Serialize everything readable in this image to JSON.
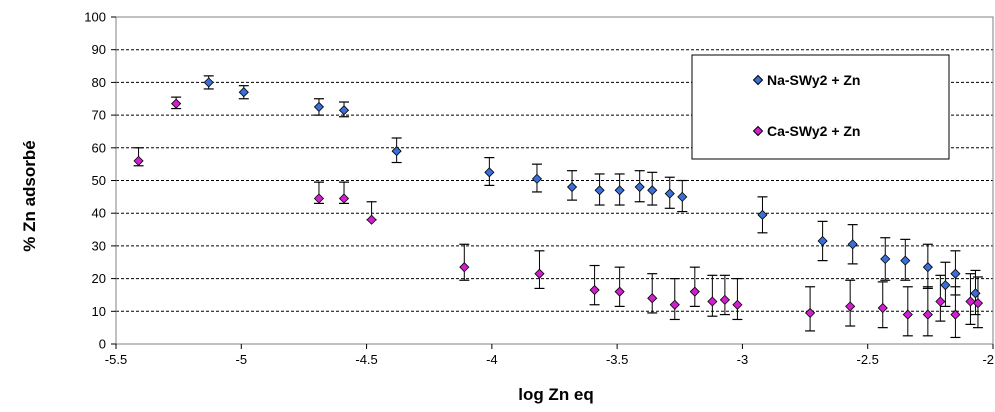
{
  "chart_data": {
    "type": "scatter",
    "title": "",
    "xlabel": "log Zn eq",
    "ylabel": "% Zn adsorbé",
    "xlim": [
      -5.5,
      -2
    ],
    "ylim": [
      0,
      100
    ],
    "x_ticks": [
      -5.5,
      -5,
      -4.5,
      -4,
      -3.5,
      -3,
      -2.5,
      -2
    ],
    "y_ticks": [
      0,
      10,
      20,
      30,
      40,
      50,
      60,
      70,
      80,
      90,
      100
    ],
    "x_tick_labels": [
      "-5.5",
      "-5",
      "-4.5",
      "-4",
      "-3.5",
      "-3",
      "-2.5",
      "-2"
    ],
    "y_tick_labels": [
      "0",
      "10",
      "20",
      "30",
      "40",
      "50",
      "60",
      "70",
      "80",
      "90",
      "100"
    ],
    "grid": "horizontal dashed",
    "legend_position": "top-right",
    "colors": {
      "na": "#3a6fd8",
      "ca": "#d11fcf"
    },
    "series": [
      {
        "name": "Na-SWy2 + Zn",
        "marker": "diamond",
        "points": [
          {
            "x": -5.13,
            "y": 80,
            "lo": 78,
            "hi": 82
          },
          {
            "x": -4.99,
            "y": 77,
            "lo": 75,
            "hi": 79
          },
          {
            "x": -4.69,
            "y": 72.5,
            "lo": 70,
            "hi": 75
          },
          {
            "x": -4.59,
            "y": 71.5,
            "lo": 69.5,
            "hi": 74
          },
          {
            "x": -4.38,
            "y": 59,
            "lo": 55.5,
            "hi": 63
          },
          {
            "x": -4.01,
            "y": 52.5,
            "lo": 48.5,
            "hi": 57
          },
          {
            "x": -3.82,
            "y": 50.5,
            "lo": 46.5,
            "hi": 55
          },
          {
            "x": -3.68,
            "y": 48,
            "lo": 44,
            "hi": 53
          },
          {
            "x": -3.57,
            "y": 47,
            "lo": 42.5,
            "hi": 52
          },
          {
            "x": -3.49,
            "y": 47,
            "lo": 42.5,
            "hi": 52
          },
          {
            "x": -3.41,
            "y": 48,
            "lo": 43.5,
            "hi": 53
          },
          {
            "x": -3.36,
            "y": 47,
            "lo": 42.5,
            "hi": 52.5
          },
          {
            "x": -3.29,
            "y": 46,
            "lo": 41.5,
            "hi": 51
          },
          {
            "x": -3.24,
            "y": 45,
            "lo": 40.5,
            "hi": 50
          },
          {
            "x": -2.92,
            "y": 39.5,
            "lo": 34,
            "hi": 45
          },
          {
            "x": -2.68,
            "y": 31.5,
            "lo": 25.5,
            "hi": 37.5
          },
          {
            "x": -2.56,
            "y": 30.5,
            "lo": 24.5,
            "hi": 36.5
          },
          {
            "x": -2.43,
            "y": 26,
            "lo": 19.5,
            "hi": 32.5
          },
          {
            "x": -2.35,
            "y": 25.5,
            "lo": 19.5,
            "hi": 32
          },
          {
            "x": -2.26,
            "y": 23.5,
            "lo": 17,
            "hi": 30.5
          },
          {
            "x": -2.15,
            "y": 21.5,
            "lo": 15,
            "hi": 28.5
          },
          {
            "x": -2.19,
            "y": 18,
            "lo": 11.5,
            "hi": 25
          },
          {
            "x": -2.07,
            "y": 15.5,
            "lo": 9,
            "hi": 22.5
          }
        ]
      },
      {
        "name": "Ca-SWy2 + Zn",
        "marker": "diamond",
        "points": [
          {
            "x": -5.41,
            "y": 56,
            "lo": 54.5,
            "hi": 60
          },
          {
            "x": -5.26,
            "y": 73.5,
            "lo": 72,
            "hi": 75.5
          },
          {
            "x": -4.69,
            "y": 44.5,
            "lo": 43,
            "hi": 49.5
          },
          {
            "x": -4.59,
            "y": 44.5,
            "lo": 43,
            "hi": 49.5
          },
          {
            "x": -4.48,
            "y": 38,
            "lo": 38,
            "hi": 43.5
          },
          {
            "x": -4.11,
            "y": 23.5,
            "lo": 19.5,
            "hi": 30.5
          },
          {
            "x": -3.81,
            "y": 21.5,
            "lo": 17,
            "hi": 28.5
          },
          {
            "x": -3.59,
            "y": 16.5,
            "lo": 12,
            "hi": 24
          },
          {
            "x": -3.49,
            "y": 16,
            "lo": 11.5,
            "hi": 23.5
          },
          {
            "x": -3.36,
            "y": 14,
            "lo": 9.5,
            "hi": 21.5
          },
          {
            "x": -3.27,
            "y": 12,
            "lo": 7.5,
            "hi": 20
          },
          {
            "x": -3.19,
            "y": 16,
            "lo": 11.5,
            "hi": 23.5
          },
          {
            "x": -3.12,
            "y": 13,
            "lo": 8.5,
            "hi": 21
          },
          {
            "x": -3.07,
            "y": 13.5,
            "lo": 9,
            "hi": 21
          },
          {
            "x": -3.02,
            "y": 12,
            "lo": 7.5,
            "hi": 20
          },
          {
            "x": -2.73,
            "y": 9.5,
            "lo": 4,
            "hi": 17.5
          },
          {
            "x": -2.57,
            "y": 11.5,
            "lo": 5.5,
            "hi": 19.5
          },
          {
            "x": -2.44,
            "y": 11,
            "lo": 5,
            "hi": 19
          },
          {
            "x": -2.34,
            "y": 9,
            "lo": 2.5,
            "hi": 17.5
          },
          {
            "x": -2.26,
            "y": 9,
            "lo": 2.5,
            "hi": 17.5
          },
          {
            "x": -2.21,
            "y": 13,
            "lo": 7,
            "hi": 21
          },
          {
            "x": -2.15,
            "y": 9,
            "lo": 2,
            "hi": 17.5
          },
          {
            "x": -2.09,
            "y": 13,
            "lo": 6,
            "hi": 21.5
          },
          {
            "x": -2.06,
            "y": 12.5,
            "lo": 5,
            "hi": 20.5
          }
        ]
      }
    ]
  }
}
